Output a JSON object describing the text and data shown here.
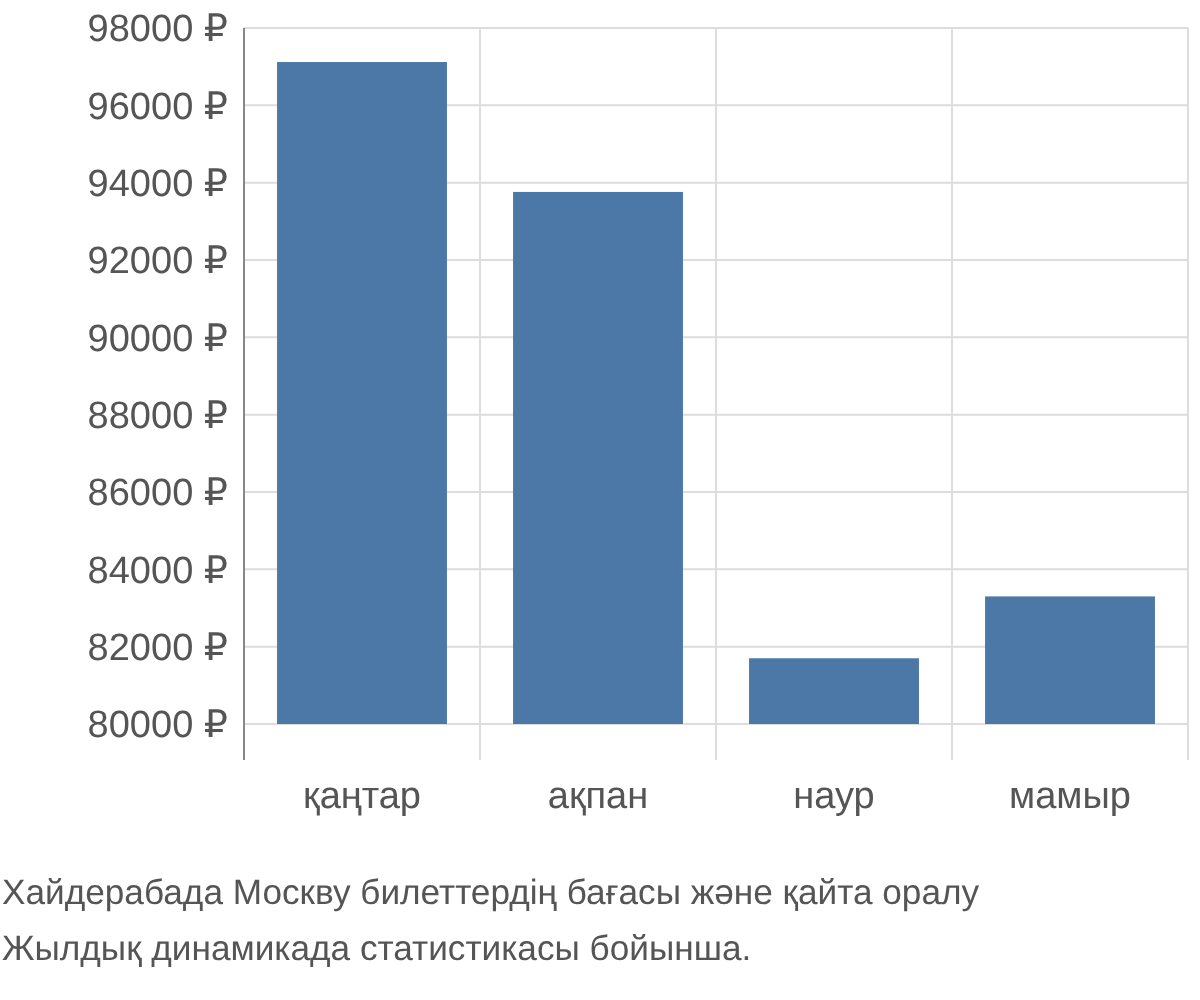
{
  "chart_data": {
    "type": "bar",
    "categories": [
      "қаңтар",
      "ақпан",
      "наур",
      "мамыр"
    ],
    "values": [
      97120,
      93760,
      81700,
      83300
    ],
    "color": "#4c78a8",
    "ylim": [
      80000,
      98000
    ],
    "yticks": [
      {
        "value": 80000,
        "label": "80000 ₽"
      },
      {
        "value": 82000,
        "label": "82000 ₽"
      },
      {
        "value": 84000,
        "label": "84000 ₽"
      },
      {
        "value": 86000,
        "label": "86000 ₽"
      },
      {
        "value": 88000,
        "label": "88000 ₽"
      },
      {
        "value": 90000,
        "label": "90000 ₽"
      },
      {
        "value": 92000,
        "label": "92000 ₽"
      },
      {
        "value": 94000,
        "label": "94000 ₽"
      },
      {
        "value": 96000,
        "label": "96000 ₽"
      },
      {
        "value": 98000,
        "label": "98000 ₽"
      }
    ],
    "grid": true,
    "annotations": [
      "Хайдерабада Москву билеттердің бағасы және қайта оралу",
      "Жылдық динамикада статистикасы бойынша."
    ]
  }
}
